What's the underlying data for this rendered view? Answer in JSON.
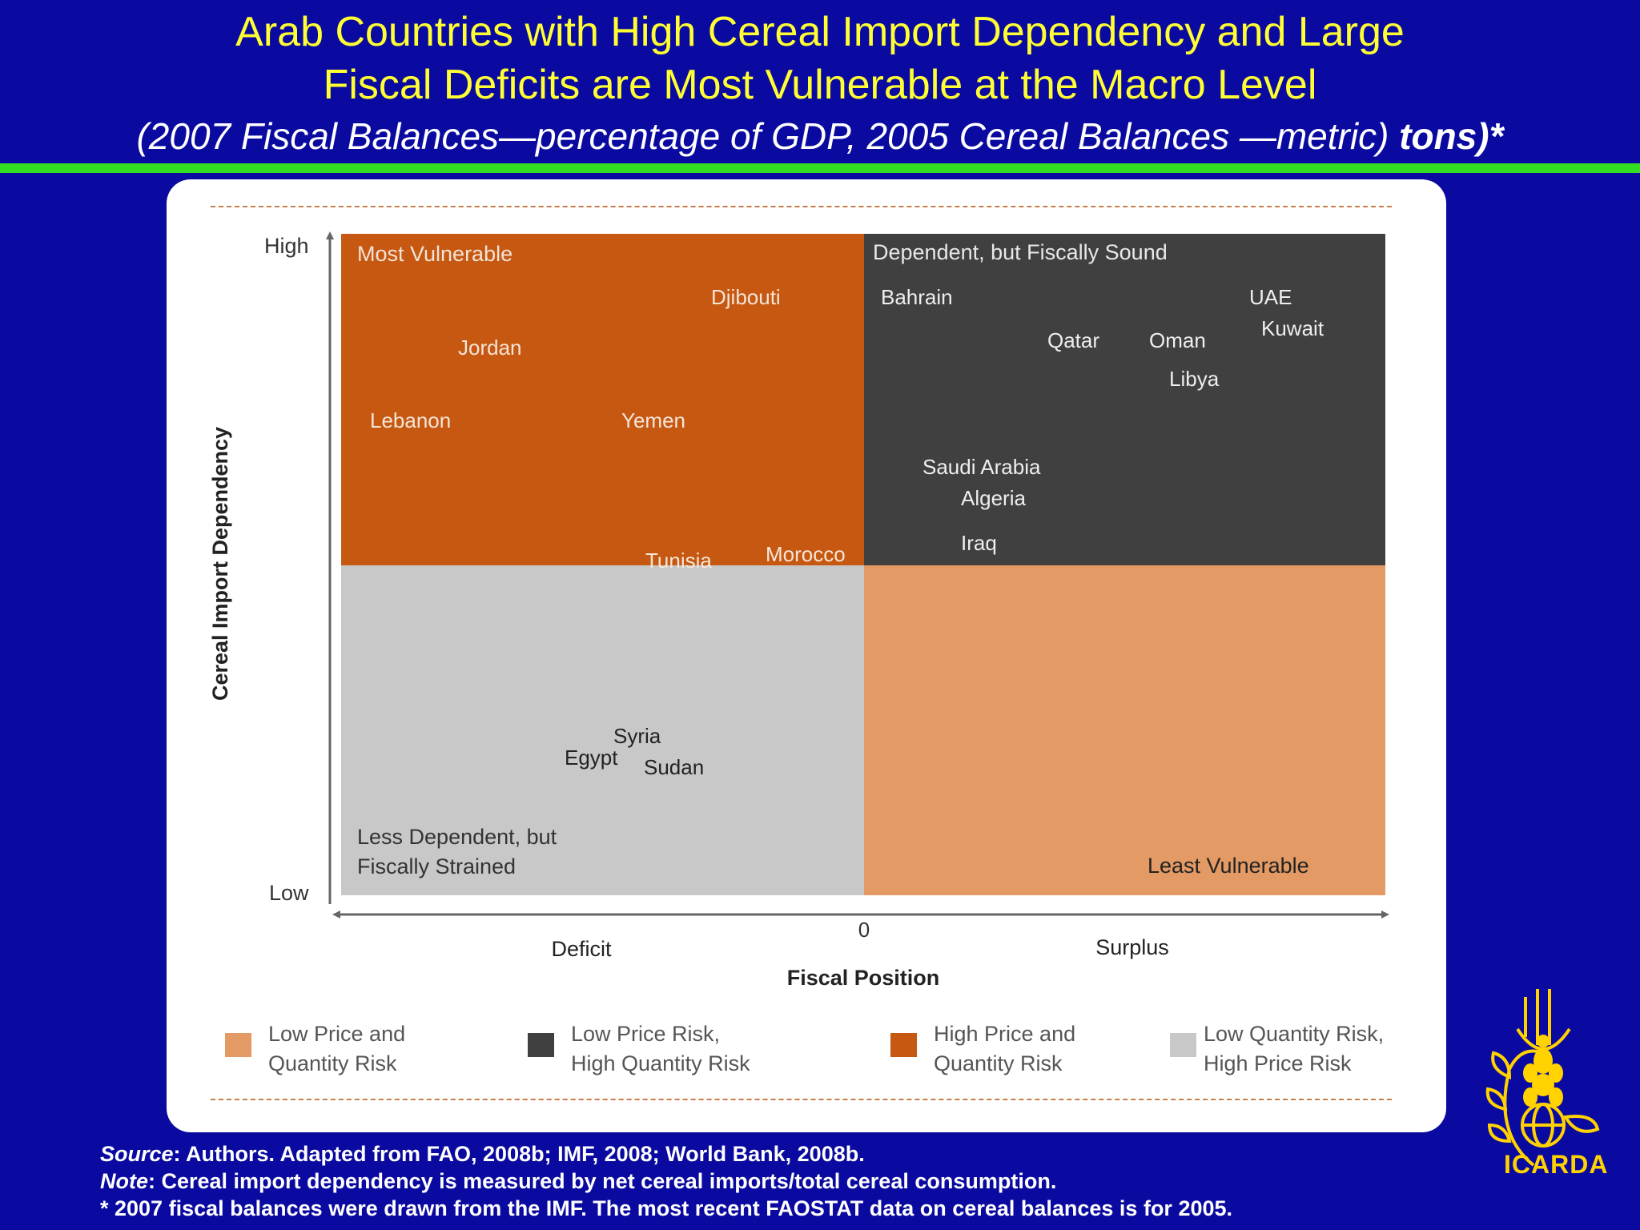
{
  "slide": {
    "title_line1": "Arab Countries with High Cereal Import Dependency and Large",
    "title_line2": "Fiscal Deficits are Most Vulnerable at the Macro Level",
    "subtitle_main": "(2007 Fiscal Balances—percentage of GDP, 2005 Cereal Balances —metric)",
    "subtitle_bold": "tons)*"
  },
  "chart": {
    "y_axis_label": "Cereal Import Dependency",
    "y_high": "High",
    "y_low": "Low",
    "x_axis_label": "Fiscal Position",
    "x_deficit": "Deficit",
    "x_zero": "0",
    "x_surplus": "Surplus",
    "quadrants": {
      "top_left": {
        "label": "Most Vulnerable",
        "color": "#c65811"
      },
      "top_right": {
        "label": "Dependent, but Fiscally Sound",
        "color": "#404040"
      },
      "bottom_left": {
        "label_line1": "Less Dependent, but",
        "label_line2": "Fiscally Strained",
        "color": "#c8c8c8"
      },
      "bottom_right": {
        "label": "Least Vulnerable",
        "color": "#e39a64"
      }
    },
    "countries": [
      {
        "name": "Djibouti",
        "quadrant": "top_left"
      },
      {
        "name": "Jordan",
        "quadrant": "top_left"
      },
      {
        "name": "Lebanon",
        "quadrant": "top_left"
      },
      {
        "name": "Yemen",
        "quadrant": "top_left"
      },
      {
        "name": "Tunisia",
        "quadrant": "top_left"
      },
      {
        "name": "Morocco",
        "quadrant": "top_left"
      },
      {
        "name": "Bahrain",
        "quadrant": "top_right"
      },
      {
        "name": "UAE",
        "quadrant": "top_right"
      },
      {
        "name": "Kuwait",
        "quadrant": "top_right"
      },
      {
        "name": "Qatar",
        "quadrant": "top_right"
      },
      {
        "name": "Oman",
        "quadrant": "top_right"
      },
      {
        "name": "Libya",
        "quadrant": "top_right"
      },
      {
        "name": "Saudi Arabia",
        "quadrant": "top_right"
      },
      {
        "name": "Algeria",
        "quadrant": "top_right"
      },
      {
        "name": "Iraq",
        "quadrant": "top_right"
      },
      {
        "name": "Syria",
        "quadrant": "bottom_left"
      },
      {
        "name": "Egypt",
        "quadrant": "bottom_left"
      },
      {
        "name": "Sudan",
        "quadrant": "bottom_left"
      }
    ],
    "legend": [
      {
        "line1": "Low Price and",
        "line2": "Quantity Risk",
        "color": "#e39a64"
      },
      {
        "line1": "Low Price Risk,",
        "line2": "High Quantity Risk",
        "color": "#404040"
      },
      {
        "line1": "High Price and",
        "line2": "Quantity Risk",
        "color": "#c65811"
      },
      {
        "line1": "Low Quantity Risk,",
        "line2": "High Price Risk",
        "color": "#c8c8c8"
      }
    ]
  },
  "footer": {
    "source_label": "Source",
    "source_text": ": Authors. Adapted from FAO, 2008b; IMF, 2008; World Bank, 2008b.",
    "note_label": "Note",
    "note_text": ": Cereal import dependency is measured by net cereal imports/total cereal consumption.",
    "asterisk_note": "* 2007 fiscal balances were drawn from the IMF. The most recent FAOSTAT data on cereal balances is for 2005."
  },
  "logo": {
    "text": "ICARDA"
  },
  "colors": {
    "background": "#0a0aa0",
    "title": "#ffff33",
    "accent_rule": "#33dd22"
  }
}
